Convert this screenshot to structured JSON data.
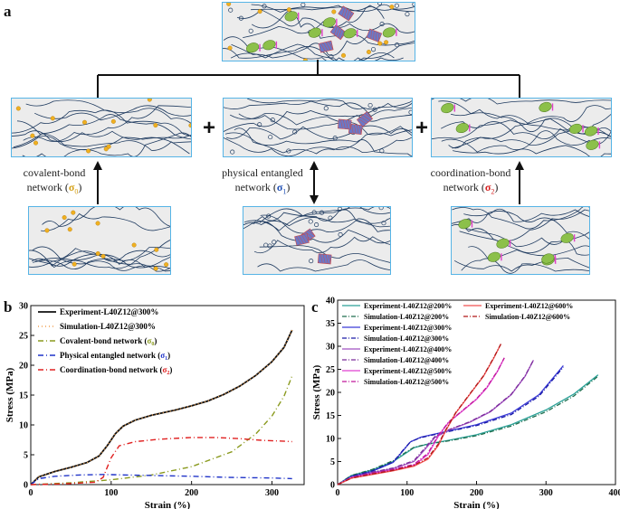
{
  "panels": {
    "a": {
      "letter": "a",
      "captions": {
        "covalent": {
          "line1": "covalent-bond",
          "line2": "network (",
          "sym": "σ",
          "sub": "0",
          "close": ")",
          "color": "#d4a017"
        },
        "physical": {
          "line1": "physical entangled",
          "line2": "network (",
          "sym": "σ",
          "sub": "1",
          "close": ")",
          "color": "#1f4fb4"
        },
        "coordination": {
          "line1": "coordination-bond",
          "line2": "network (",
          "sym": "σ",
          "sub": "2",
          "close": ")",
          "color": "#d62020"
        }
      },
      "plus_sign": "+"
    },
    "b": {
      "letter": "b"
    },
    "c": {
      "letter": "c"
    }
  },
  "chart_data": [
    {
      "id": "b",
      "type": "line",
      "xlabel": "Strain (%)",
      "ylabel": "Stress (MPa)",
      "xlim": [
        0,
        340
      ],
      "ylim": [
        0,
        30
      ],
      "xticks": [
        0,
        100,
        200,
        300
      ],
      "yticks": [
        0,
        5,
        10,
        15,
        20,
        25,
        30
      ],
      "legend": "top-left",
      "series": [
        {
          "name": "Experiment-L40Z12@300%",
          "color": "#111111",
          "dash": "",
          "width": 1.8,
          "x": [
            0,
            10,
            30,
            50,
            70,
            85,
            95,
            105,
            115,
            130,
            150,
            180,
            200,
            220,
            240,
            260,
            280,
            300,
            315,
            325
          ],
          "y": [
            0,
            1.3,
            2.2,
            2.9,
            3.7,
            4.8,
            6.5,
            8.5,
            9.8,
            10.8,
            11.6,
            12.5,
            13.2,
            14.0,
            15.1,
            16.5,
            18.3,
            20.6,
            23.0,
            25.9
          ]
        },
        {
          "name": "Simulation-L40Z12@300%",
          "color": "#f0a050",
          "dash": "1,3",
          "width": 1.4,
          "x": [
            0,
            10,
            30,
            50,
            70,
            85,
            95,
            105,
            115,
            130,
            150,
            180,
            200,
            220,
            240,
            260,
            280,
            300,
            315,
            325
          ],
          "y": [
            0,
            1.3,
            2.2,
            2.9,
            3.7,
            4.8,
            6.5,
            8.5,
            9.8,
            10.8,
            11.6,
            12.5,
            13.2,
            14.0,
            15.1,
            16.5,
            18.3,
            20.6,
            23.0,
            25.9
          ]
        },
        {
          "name": "Covalent-bond network (σ0)",
          "color": "#8a9a1e",
          "dash": "6,3,1,3",
          "width": 1.4,
          "x": [
            0,
            50,
            100,
            150,
            200,
            250,
            280,
            300,
            315,
            325
          ],
          "y": [
            0,
            0.3,
            0.8,
            1.6,
            3.0,
            5.5,
            8.5,
            11.5,
            14.8,
            18.2
          ]
        },
        {
          "name": "Physical entangled network (σ1)",
          "color": "#1f33c8",
          "dash": "6,3,1,3",
          "width": 1.4,
          "x": [
            0,
            10,
            30,
            60,
            90,
            120,
            160,
            200,
            250,
            300,
            325
          ],
          "y": [
            0,
            1.0,
            1.4,
            1.6,
            1.7,
            1.6,
            1.5,
            1.4,
            1.2,
            1.1,
            1.0
          ]
        },
        {
          "name": "Coordination-bond network (σ2)",
          "color": "#e02020",
          "dash": "6,3,1,3",
          "width": 1.4,
          "x": [
            0,
            40,
            80,
            90,
            100,
            110,
            130,
            160,
            200,
            230,
            260,
            290,
            310,
            325
          ],
          "y": [
            0,
            0.1,
            0.4,
            1.2,
            4.5,
            6.5,
            7.2,
            7.6,
            7.9,
            7.9,
            7.7,
            7.4,
            7.3,
            7.2
          ]
        }
      ],
      "legend_labels": [
        {
          "text": "Experiment-L40Z12@300%",
          "sym": "",
          "sub": ""
        },
        {
          "text": "Simulation-L40Z12@300%",
          "sym": "",
          "sub": ""
        },
        {
          "text": "Covalent-bond network (",
          "sym": "σ",
          "sub": "0"
        },
        {
          "text": "Physical entangled network (",
          "sym": "σ",
          "sub": "1"
        },
        {
          "text": "Coordination-bond network (",
          "sym": "σ",
          "sub": "2"
        }
      ]
    },
    {
      "id": "c",
      "type": "line",
      "xlabel": "Strain (%)",
      "ylabel": "Stress (MPa)",
      "xlim": [
        0,
        400
      ],
      "ylim": [
        0,
        40
      ],
      "xticks": [
        0,
        100,
        200,
        300,
        400
      ],
      "yticks": [
        0,
        5,
        10,
        15,
        20,
        25,
        30,
        35,
        40
      ],
      "legend": "top",
      "series": [
        {
          "name": "Experiment-L40Z12@200%",
          "color": "#2aa198",
          "dash": "",
          "width": 1.3,
          "x": [
            0,
            20,
            50,
            80,
            100,
            110,
            130,
            160,
            200,
            250,
            300,
            340,
            375
          ],
          "y": [
            0,
            2.0,
            3.2,
            5.0,
            7.0,
            8.0,
            8.8,
            9.6,
            10.8,
            13.0,
            16.2,
            19.6,
            23.8
          ]
        },
        {
          "name": "Simulation-L40Z12@200%",
          "color": "#1f6e4e",
          "dash": "5,2,1,2",
          "width": 1.3,
          "x": [
            0,
            20,
            50,
            80,
            100,
            110,
            130,
            160,
            200,
            250,
            300,
            340,
            375
          ],
          "y": [
            0,
            2.0,
            3.3,
            5.2,
            7.2,
            8.1,
            8.8,
            9.5,
            10.6,
            12.7,
            15.8,
            19.2,
            23.5
          ]
        },
        {
          "name": "Experiment-L40Z12@300%",
          "color": "#3b3bd6",
          "dash": "",
          "width": 1.3,
          "x": [
            0,
            20,
            50,
            80,
            95,
            105,
            120,
            150,
            200,
            250,
            290,
            325
          ],
          "y": [
            0,
            1.8,
            2.9,
            4.8,
            7.5,
            9.3,
            10.3,
            11.3,
            13.0,
            15.5,
            19.5,
            25.8
          ]
        },
        {
          "name": "Simulation-L40Z12@300%",
          "color": "#1a1aa8",
          "dash": "5,2,1,2",
          "width": 1.3,
          "x": [
            0,
            20,
            50,
            80,
            95,
            105,
            120,
            150,
            200,
            250,
            290,
            325
          ],
          "y": [
            0,
            1.8,
            3.0,
            4.9,
            7.6,
            9.3,
            10.2,
            11.2,
            12.8,
            15.2,
            19.2,
            25.5
          ]
        },
        {
          "name": "Experiment-L40Z12@400%",
          "color": "#a050c0",
          "dash": "",
          "width": 1.3,
          "x": [
            0,
            20,
            50,
            80,
            110,
            125,
            140,
            160,
            190,
            220,
            250,
            270,
            282
          ],
          "y": [
            0,
            1.6,
            2.6,
            3.5,
            5.0,
            7.5,
            10.2,
            11.8,
            13.5,
            15.8,
            19.5,
            23.5,
            27.0
          ]
        },
        {
          "name": "Simulation-L40Z12@400%",
          "color": "#7a2a9a",
          "dash": "5,2,1,2",
          "width": 1.3,
          "x": [
            0,
            20,
            50,
            80,
            110,
            125,
            140,
            160,
            190,
            220,
            250,
            270,
            282
          ],
          "y": [
            0,
            1.6,
            2.7,
            3.6,
            5.2,
            7.8,
            10.4,
            11.9,
            13.6,
            15.9,
            19.6,
            23.6,
            27.0
          ]
        },
        {
          "name": "Experiment-L40Z12@500%",
          "color": "#e040d0",
          "dash": "",
          "width": 1.3,
          "x": [
            0,
            20,
            50,
            80,
            110,
            130,
            145,
            160,
            180,
            200,
            215,
            230,
            240
          ],
          "y": [
            0,
            1.5,
            2.4,
            3.2,
            4.2,
            6.5,
            10.5,
            13.5,
            16.0,
            18.5,
            21.0,
            24.5,
            27.5
          ]
        },
        {
          "name": "Simulation-L40Z12@500%",
          "color": "#c0189a",
          "dash": "5,2,1,2",
          "width": 1.3,
          "x": [
            0,
            20,
            50,
            80,
            110,
            130,
            145,
            160,
            180,
            200,
            215,
            230,
            240
          ],
          "y": [
            0,
            1.5,
            2.5,
            3.3,
            4.4,
            6.8,
            10.7,
            13.6,
            16.1,
            18.6,
            21.2,
            24.6,
            27.5
          ]
        },
        {
          "name": "Experiment-L40Z12@600%",
          "color": "#f05050",
          "dash": "",
          "width": 1.3,
          "x": [
            0,
            20,
            50,
            80,
            110,
            130,
            145,
            155,
            170,
            190,
            210,
            225,
            235
          ],
          "y": [
            0,
            1.4,
            2.2,
            3.0,
            4.0,
            5.5,
            8.5,
            11.5,
            15.5,
            19.5,
            23.5,
            27.5,
            30.5
          ]
        },
        {
          "name": "Simulation-L40Z12@600%",
          "color": "#b01818",
          "dash": "5,2,1,2",
          "width": 1.3,
          "x": [
            0,
            20,
            50,
            80,
            110,
            130,
            145,
            155,
            170,
            190,
            210,
            225,
            235
          ],
          "y": [
            0,
            1.4,
            2.3,
            3.1,
            4.2,
            5.8,
            8.8,
            11.7,
            15.6,
            19.6,
            23.6,
            27.6,
            30.5
          ]
        }
      ],
      "legend_labels": [
        {
          "text": "Experiment-L40Z12@200%"
        },
        {
          "text": "Simulation-L40Z12@200%"
        },
        {
          "text": "Experiment-L40Z12@300%"
        },
        {
          "text": "Simulation-L40Z12@300%"
        },
        {
          "text": "Experiment-L40Z12@400%"
        },
        {
          "text": "Simulation-L40Z12@400%"
        },
        {
          "text": "Experiment-L40Z12@500%"
        },
        {
          "text": "Simulation-L40Z12@500%"
        },
        {
          "text": "Experiment-L40Z12@600%"
        },
        {
          "text": "Simulation-L40Z12@600%"
        }
      ]
    }
  ]
}
